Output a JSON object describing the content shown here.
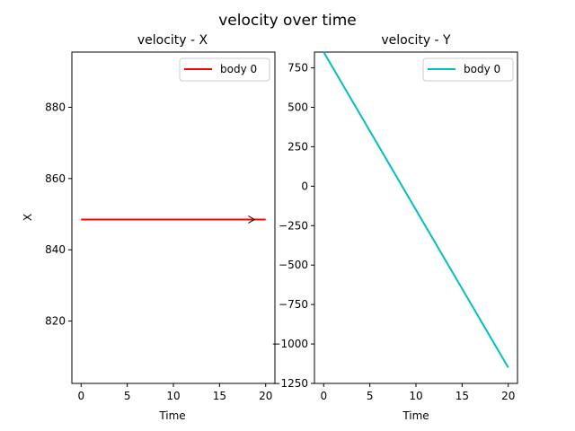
{
  "figure": {
    "title": "velocity over time"
  },
  "chart_data": [
    {
      "type": "line",
      "title": "velocity - X",
      "xlabel": "Time",
      "ylabel": "X",
      "xlim": [
        -1,
        21
      ],
      "ylim": [
        802.5,
        895.5
      ],
      "xticks": [
        0,
        5,
        10,
        15,
        20
      ],
      "yticks": [
        820,
        840,
        860,
        880
      ],
      "grid": false,
      "legend_position": "top-right",
      "series": [
        {
          "name": "body 0",
          "color": "#ff0000",
          "x": [
            0,
            20
          ],
          "y": [
            848.5,
            848.5
          ],
          "arrow_at_x": 18.6
        }
      ]
    },
    {
      "type": "line",
      "title": "velocity - Y",
      "xlabel": "Time",
      "ylabel": "",
      "xlim": [
        -1,
        21
      ],
      "ylim": [
        -1250,
        850
      ],
      "xticks": [
        0,
        5,
        10,
        15,
        20
      ],
      "yticks": [
        -1250,
        -1000,
        -750,
        -500,
        -250,
        0,
        250,
        500,
        750
      ],
      "grid": false,
      "legend_position": "top-right",
      "series": [
        {
          "name": "body 0",
          "color": "#00bfbf",
          "x": [
            0,
            20
          ],
          "y": [
            850,
            -1150
          ]
        }
      ]
    }
  ]
}
